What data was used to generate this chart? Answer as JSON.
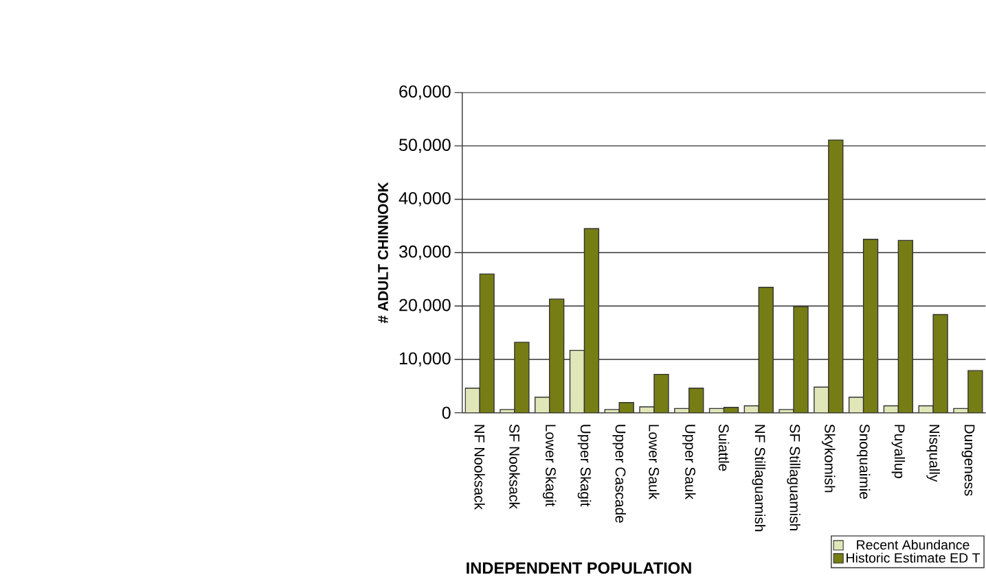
{
  "chart_data": {
    "type": "bar",
    "xlabel": "INDEPENDENT POPULATION",
    "ylabel": "# ADULT CHINNOOK",
    "categories": [
      "NF Nooksack",
      "SF Nooksack",
      "Lower Skagit",
      "Upper Skagit",
      "Upper Cascade",
      "Lower Sauk",
      "Upper Sauk",
      "Suiattle",
      "NF Stillaguamish",
      "SF Stillaguamish",
      "Skykomish",
      "Snoquaimie",
      "Puyallup",
      "Nisqually",
      "Dungeness"
    ],
    "series": [
      {
        "name": "Recent Abundance",
        "color": "#e0e6b8",
        "values": [
          4600,
          600,
          2900,
          11700,
          600,
          1100,
          800,
          800,
          1300,
          600,
          4800,
          2900,
          1300,
          1300,
          800
        ]
      },
      {
        "name": "Historic Estimate ED T",
        "color": "#767d14",
        "values": [
          26000,
          13200,
          21300,
          34500,
          1900,
          7200,
          4600,
          1000,
          23500,
          19900,
          51100,
          32500,
          32300,
          18400,
          7900
        ]
      }
    ],
    "ylim": [
      0,
      60000
    ],
    "yticks": [
      {
        "value": 0,
        "label": "0"
      },
      {
        "value": 10000,
        "label": "10,000"
      },
      {
        "value": 20000,
        "label": "20,000"
      },
      {
        "value": 30000,
        "label": "30,000"
      },
      {
        "value": 40000,
        "label": "40,000"
      },
      {
        "value": 50000,
        "label": "50,000"
      },
      {
        "value": 60000,
        "label": "60,000"
      }
    ],
    "grid": "y",
    "legend": "bottom right"
  }
}
